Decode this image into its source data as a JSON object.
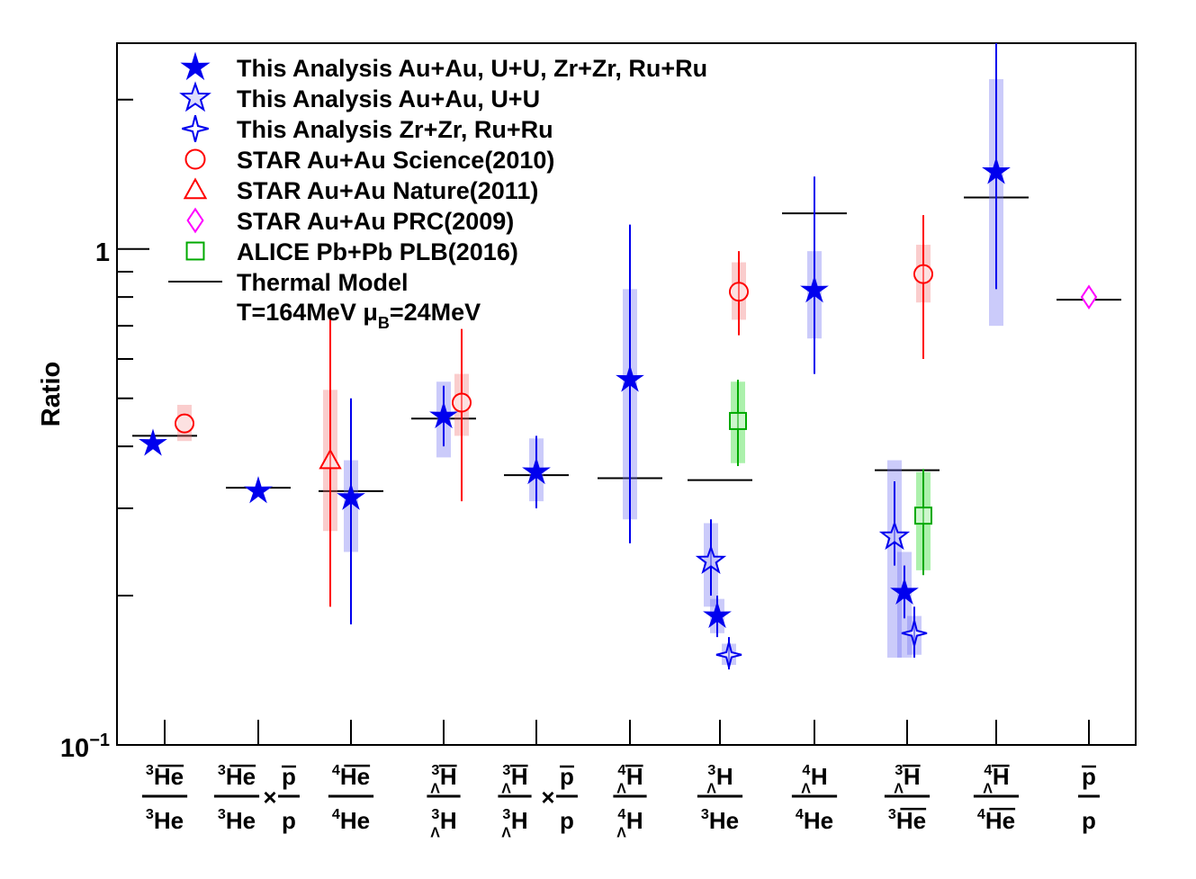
{
  "chart_data": {
    "type": "scatter",
    "ylabel": "Ratio",
    "yscale": "log",
    "ylim": [
      0.1,
      2.6
    ],
    "ytick_labels": [
      {
        "value": 1,
        "label": "1"
      },
      {
        "value": 0.1,
        "label": "10",
        "exp": "−1"
      }
    ],
    "categories": [
      {
        "num": [
          {
            "t": "He",
            "sup": "3",
            "bar": true
          }
        ],
        "den": [
          {
            "t": "He",
            "sup": "3"
          }
        ]
      },
      {
        "num": [
          {
            "t": "He",
            "sup": "3",
            "bar": true
          }
        ],
        "den": [
          {
            "t": "He",
            "sup": "3"
          }
        ],
        "times": true,
        "num2": [
          {
            "t": "p",
            "bar": true
          }
        ],
        "den2": [
          {
            "t": "p"
          }
        ]
      },
      {
        "num": [
          {
            "t": "He",
            "sup": "4",
            "bar": true
          }
        ],
        "den": [
          {
            "t": "He",
            "sup": "4"
          }
        ]
      },
      {
        "num": [
          {
            "t": "H",
            "sup": "3",
            "sub": "Λ",
            "bar": true
          }
        ],
        "den": [
          {
            "t": "H",
            "sup": "3",
            "sub": "Λ"
          }
        ]
      },
      {
        "num": [
          {
            "t": "H",
            "sup": "3",
            "sub": "Λ",
            "bar": true
          }
        ],
        "den": [
          {
            "t": "H",
            "sup": "3",
            "sub": "Λ"
          }
        ],
        "times": true,
        "num2": [
          {
            "t": "p",
            "bar": true
          }
        ],
        "den2": [
          {
            "t": "p"
          }
        ]
      },
      {
        "num": [
          {
            "t": "H",
            "sup": "4",
            "sub": "Λ",
            "bar": true
          }
        ],
        "den": [
          {
            "t": "H",
            "sup": "4",
            "sub": "Λ"
          }
        ]
      },
      {
        "num": [
          {
            "t": "H",
            "sup": "3",
            "sub": "Λ"
          }
        ],
        "den": [
          {
            "t": "He",
            "sup": "3"
          }
        ]
      },
      {
        "num": [
          {
            "t": "H",
            "sup": "4",
            "sub": "Λ"
          }
        ],
        "den": [
          {
            "t": "He",
            "sup": "4"
          }
        ]
      },
      {
        "num": [
          {
            "t": "H",
            "sup": "3",
            "sub": "Λ",
            "bar": true
          }
        ],
        "den": [
          {
            "t": "He",
            "sup": "3",
            "bar": true
          }
        ]
      },
      {
        "num": [
          {
            "t": "H",
            "sup": "4",
            "sub": "Λ",
            "bar": true
          }
        ],
        "den": [
          {
            "t": "He",
            "sup": "4",
            "bar": true
          }
        ]
      },
      {
        "num": [
          {
            "t": "p",
            "bar": true
          }
        ],
        "den": [
          {
            "t": "p"
          }
        ]
      }
    ],
    "legend_position": "top-left",
    "legend": [
      {
        "key": "this_all",
        "label": "This Analysis Au+Au, U+U, Zr+Zr, Ru+Ru",
        "marker": "star-filled",
        "color": "#0000ee"
      },
      {
        "key": "this_auu",
        "label": "This Analysis Au+Au, U+U",
        "marker": "star-open",
        "color": "#0000ee"
      },
      {
        "key": "this_zrru",
        "label": "This Analysis Zr+Zr, Ru+Ru",
        "marker": "cross-star-open",
        "color": "#0000ee"
      },
      {
        "key": "star_sci",
        "label": "STAR Au+Au Science(2010)",
        "marker": "circle-open",
        "color": "#ff0000"
      },
      {
        "key": "star_nat",
        "label": "STAR Au+Au Nature(2011)",
        "marker": "triangle-open",
        "color": "#ff0000"
      },
      {
        "key": "star_prc",
        "label": "STAR Au+Au PRC(2009)",
        "marker": "diamond-open",
        "color": "#ff00ff"
      },
      {
        "key": "alice",
        "label": "ALICE Pb+Pb PLB(2016)",
        "marker": "square-open",
        "color": "#00aa00"
      },
      {
        "key": "thermal",
        "label": "Thermal Model",
        "marker": "line",
        "color": "#000000"
      }
    ],
    "thermal_note": {
      "prefix": "T=164MeV  ",
      "mu": "μ",
      "mu_sub": "B",
      "suffix": "=24MeV"
    },
    "thermal_model": [
      0.42,
      0.33,
      0.325,
      0.455,
      0.35,
      0.345,
      0.342,
      1.18,
      0.358,
      1.27,
      0.79
    ],
    "series": [
      {
        "key": "this_all",
        "name": "This Analysis Au+Au, U+U, Zr+Zr, Ru+Ru",
        "points": [
          {
            "cat": 0,
            "y": 0.405
          },
          {
            "cat": 1,
            "y": 0.325
          },
          {
            "cat": 2,
            "y": 0.315,
            "stat": [
              0.175,
              0.5
            ],
            "sys": [
              0.245,
              0.375
            ]
          },
          {
            "cat": 3,
            "y": 0.46,
            "stat": [
              0.4,
              0.53
            ],
            "sys": [
              0.38,
              0.54
            ]
          },
          {
            "cat": 4,
            "y": 0.355,
            "stat": [
              0.3,
              0.42
            ],
            "sys": [
              0.31,
              0.415
            ]
          },
          {
            "cat": 5,
            "y": 0.545,
            "stat": [
              0.255,
              1.12
            ],
            "sys": [
              0.285,
              0.83
            ]
          },
          {
            "cat": 6,
            "y": 0.182,
            "stat": [
              0.165,
              0.2
            ],
            "sys": [
              0.168,
              0.197
            ]
          },
          {
            "cat": 7,
            "y": 0.825,
            "stat": [
              0.56,
              1.4
            ],
            "sys": [
              0.66,
              0.99
            ]
          },
          {
            "cat": 8,
            "y": 0.203,
            "stat": [
              0.18,
              0.23
            ],
            "sys": [
              0.15,
              0.245
            ]
          },
          {
            "cat": 9,
            "y": 1.43,
            "stat": [
              0.83,
              2.6
            ],
            "sys": [
              0.7,
              2.2
            ]
          }
        ]
      },
      {
        "key": "this_auu",
        "name": "This Analysis Au+Au, U+U",
        "points": [
          {
            "cat": 6,
            "y": 0.235,
            "stat": [
              0.2,
              0.285
            ],
            "sys": [
              0.19,
              0.28
            ]
          },
          {
            "cat": 8,
            "y": 0.263,
            "stat": [
              0.23,
              0.34
            ],
            "sys": [
              0.15,
              0.375
            ]
          }
        ]
      },
      {
        "key": "this_zrru",
        "name": "This Analysis Zr+Zr, Ru+Ru",
        "points": [
          {
            "cat": 6,
            "y": 0.152,
            "stat": [
              0.142,
              0.165
            ],
            "sys": [
              0.145,
              0.16
            ]
          },
          {
            "cat": 8,
            "y": 0.168,
            "stat": [
              0.15,
              0.19
            ],
            "sys": [
              0.152,
              0.182
            ]
          }
        ]
      },
      {
        "key": "star_sci",
        "name": "STAR Au+Au Science(2010)",
        "points": [
          {
            "cat": 0,
            "y": 0.445,
            "sys": [
              0.41,
              0.485
            ]
          },
          {
            "cat": 3,
            "y": 0.49,
            "stat": [
              0.31,
              0.69
            ],
            "sys": [
              0.42,
              0.56
            ]
          },
          {
            "cat": 6,
            "y": 0.82,
            "stat": [
              0.67,
              0.99
            ],
            "sys": [
              0.72,
              0.94
            ]
          },
          {
            "cat": 8,
            "y": 0.89,
            "stat": [
              0.6,
              1.17
            ],
            "sys": [
              0.78,
              1.02
            ]
          }
        ]
      },
      {
        "key": "star_nat",
        "name": "STAR Au+Au Nature(2011)",
        "points": [
          {
            "cat": 2,
            "y": 0.375,
            "stat": [
              0.19,
              0.75
            ],
            "sys": [
              0.27,
              0.52
            ]
          }
        ]
      },
      {
        "key": "star_prc",
        "name": "STAR Au+Au PRC(2009)",
        "points": [
          {
            "cat": 10,
            "y": 0.8
          }
        ]
      },
      {
        "key": "alice",
        "name": "ALICE Pb+Pb PLB(2016)",
        "points": [
          {
            "cat": 6,
            "y": 0.45,
            "stat": [
              0.365,
              0.545
            ],
            "sys": [
              0.37,
              0.54
            ]
          },
          {
            "cat": 8,
            "y": 0.29,
            "stat": [
              0.22,
              0.36
            ],
            "sys": [
              0.225,
              0.355
            ]
          }
        ]
      }
    ]
  }
}
